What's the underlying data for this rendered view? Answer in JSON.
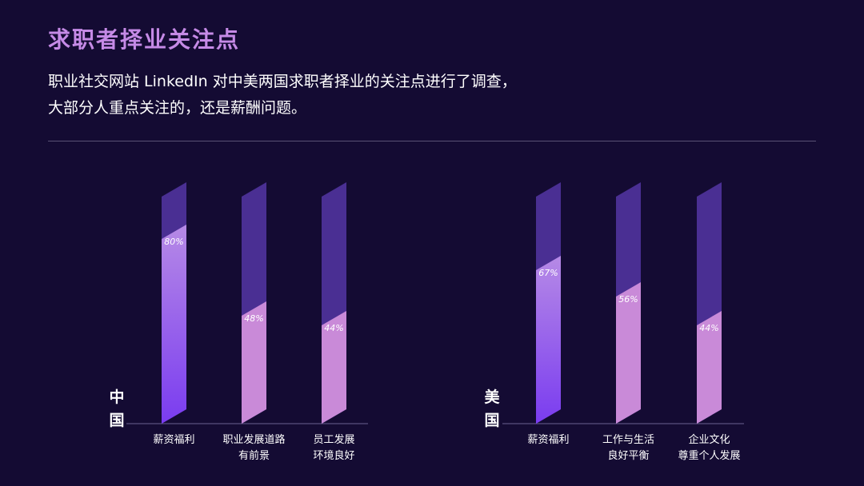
{
  "title": "求职者择业关注点",
  "subtitle_lines": [
    "职业社交网站 LinkedIn 对中美两国求职者择业的关注点进行了调查，",
    "大部分人重点关注的，还是薪酬问题。"
  ],
  "colors": {
    "bar_track": "#4a2f93",
    "fill_primary_top": "#b68ae6",
    "fill_primary_bottom": "#7a3cf0",
    "fill_secondary": "#c98ad8"
  },
  "chart_data": {
    "type": "bar",
    "ylim": [
      0,
      100
    ],
    "groups": [
      {
        "name": "中国",
        "name_chars": [
          "中",
          "国"
        ],
        "categories": [
          {
            "lines": [
              "薪资福利"
            ],
            "value": 80,
            "label": "80%"
          },
          {
            "lines": [
              "职业发展道路",
              "有前景"
            ],
            "value": 48,
            "label": "48%"
          },
          {
            "lines": [
              "员工发展",
              "环境良好"
            ],
            "value": 44,
            "label": "44%"
          }
        ]
      },
      {
        "name": "美国",
        "name_chars": [
          "美",
          "国"
        ],
        "categories": [
          {
            "lines": [
              "薪资福利"
            ],
            "value": 67,
            "label": "67%"
          },
          {
            "lines": [
              "工作与生活",
              "良好平衡"
            ],
            "value": 56,
            "label": "56%"
          },
          {
            "lines": [
              "企业文化",
              "尊重个人发展"
            ],
            "value": 44,
            "label": "44%"
          }
        ]
      }
    ]
  }
}
